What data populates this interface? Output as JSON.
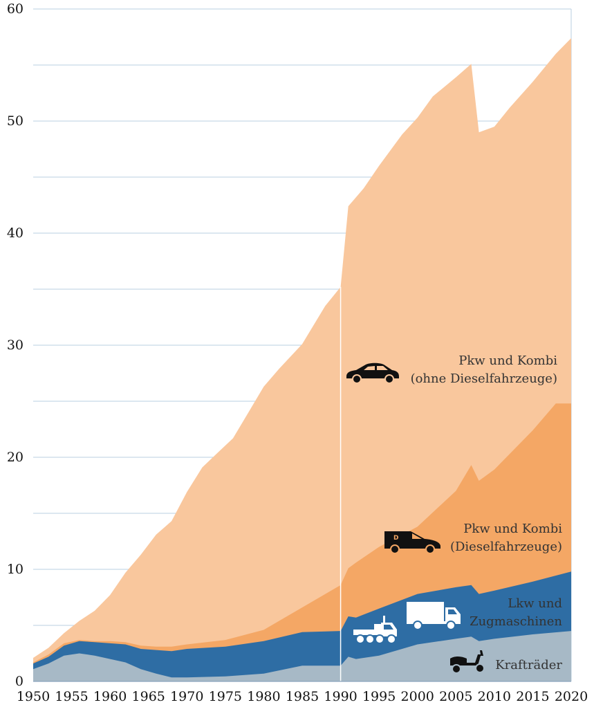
{
  "chart_data": {
    "type": "area",
    "stacked": true,
    "x_range": [
      1950,
      2020
    ],
    "ylim": [
      0,
      60
    ],
    "yticks": [
      "0",
      "10",
      "20",
      "30",
      "40",
      "50",
      "60"
    ],
    "xticks": [
      "1950",
      "1955",
      "1960",
      "1965",
      "1970",
      "1975",
      "1980",
      "1985",
      "1990",
      "1995",
      "2000",
      "2005",
      "2010",
      "2015",
      "2020"
    ],
    "grid": true,
    "gridline_color": "#b9cfe0",
    "break_line_at": 1990,
    "series": [
      {
        "key": "kraftraeder",
        "color": "#a7b9c6",
        "label_lines": [
          "Krafträder"
        ],
        "icon": "scooter-icon",
        "points": [
          [
            1950,
            1.1
          ],
          [
            1952,
            1.6
          ],
          [
            1954,
            2.3
          ],
          [
            1956,
            2.5
          ],
          [
            1958,
            2.3
          ],
          [
            1960,
            2.0
          ],
          [
            1962,
            1.7
          ],
          [
            1964,
            1.1
          ],
          [
            1966,
            0.7
          ],
          [
            1968,
            0.35
          ],
          [
            1970,
            0.35
          ],
          [
            1975,
            0.45
          ],
          [
            1980,
            0.7
          ],
          [
            1985,
            1.4
          ],
          [
            1990,
            1.4
          ],
          [
            1991,
            2.2
          ],
          [
            1992,
            2.0
          ],
          [
            1995,
            2.3
          ],
          [
            2000,
            3.3
          ],
          [
            2005,
            3.8
          ],
          [
            2007,
            4.0
          ],
          [
            2008,
            3.6
          ],
          [
            2010,
            3.8
          ],
          [
            2015,
            4.2
          ],
          [
            2020,
            4.5
          ]
        ]
      },
      {
        "key": "lkw",
        "color": "#2e6da4",
        "label_lines": [
          "Lkw und",
          "Zugmaschinen"
        ],
        "icon": "truck-icon",
        "points": [
          [
            1950,
            1.6
          ],
          [
            1952,
            2.2
          ],
          [
            1954,
            3.2
          ],
          [
            1956,
            3.6
          ],
          [
            1958,
            3.5
          ],
          [
            1960,
            3.4
          ],
          [
            1962,
            3.3
          ],
          [
            1964,
            2.9
          ],
          [
            1966,
            2.8
          ],
          [
            1968,
            2.7
          ],
          [
            1970,
            2.9
          ],
          [
            1975,
            3.1
          ],
          [
            1980,
            3.6
          ],
          [
            1985,
            4.4
          ],
          [
            1990,
            4.5
          ],
          [
            1991,
            5.8
          ],
          [
            1992,
            5.7
          ],
          [
            1995,
            6.5
          ],
          [
            2000,
            7.8
          ],
          [
            2005,
            8.4
          ],
          [
            2007,
            8.6
          ],
          [
            2008,
            7.8
          ],
          [
            2010,
            8.1
          ],
          [
            2015,
            8.9
          ],
          [
            2020,
            9.8
          ]
        ]
      },
      {
        "key": "pkw_diesel",
        "color": "#f4a765",
        "label_lines": [
          "Pkw und Kombi",
          "(Dieselfahrzeuge)"
        ],
        "icon": "diesel-car-icon",
        "points": [
          [
            1950,
            1.7
          ],
          [
            1952,
            2.4
          ],
          [
            1954,
            3.4
          ],
          [
            1956,
            3.7
          ],
          [
            1958,
            3.6
          ],
          [
            1960,
            3.6
          ],
          [
            1962,
            3.5
          ],
          [
            1964,
            3.2
          ],
          [
            1966,
            3.1
          ],
          [
            1968,
            3.1
          ],
          [
            1970,
            3.3
          ],
          [
            1975,
            3.7
          ],
          [
            1980,
            4.6
          ],
          [
            1985,
            6.6
          ],
          [
            1990,
            8.6
          ],
          [
            1991,
            10.1
          ],
          [
            1992,
            10.6
          ],
          [
            1995,
            12.0
          ],
          [
            2000,
            13.8
          ],
          [
            2005,
            17.0
          ],
          [
            2007,
            19.3
          ],
          [
            2008,
            17.9
          ],
          [
            2010,
            18.9
          ],
          [
            2015,
            22.4
          ],
          [
            2018,
            24.8
          ],
          [
            2020,
            24.8
          ]
        ]
      },
      {
        "key": "pkw_otto",
        "color": "#f9c79d",
        "label_lines": [
          "Pkw und Kombi",
          "(ohne Dieselfahrzeuge)"
        ],
        "icon": "car-icon",
        "points": [
          [
            1950,
            2.1
          ],
          [
            1952,
            3.0
          ],
          [
            1954,
            4.3
          ],
          [
            1956,
            5.4
          ],
          [
            1958,
            6.3
          ],
          [
            1960,
            7.7
          ],
          [
            1962,
            9.7
          ],
          [
            1964,
            11.3
          ],
          [
            1966,
            13.1
          ],
          [
            1968,
            14.3
          ],
          [
            1970,
            16.9
          ],
          [
            1972,
            19.1
          ],
          [
            1974,
            20.4
          ],
          [
            1976,
            21.7
          ],
          [
            1978,
            24.0
          ],
          [
            1980,
            26.3
          ],
          [
            1982,
            27.9
          ],
          [
            1985,
            30.1
          ],
          [
            1988,
            33.5
          ],
          [
            1990,
            35.2
          ],
          [
            1991,
            42.4
          ],
          [
            1993,
            44.0
          ],
          [
            1995,
            46.0
          ],
          [
            1998,
            48.8
          ],
          [
            2000,
            50.3
          ],
          [
            2002,
            52.2
          ],
          [
            2005,
            53.9
          ],
          [
            2007,
            55.1
          ],
          [
            2008,
            49.0
          ],
          [
            2010,
            49.5
          ],
          [
            2012,
            51.2
          ],
          [
            2015,
            53.5
          ],
          [
            2018,
            56.0
          ],
          [
            2020,
            57.4
          ]
        ]
      }
    ]
  }
}
